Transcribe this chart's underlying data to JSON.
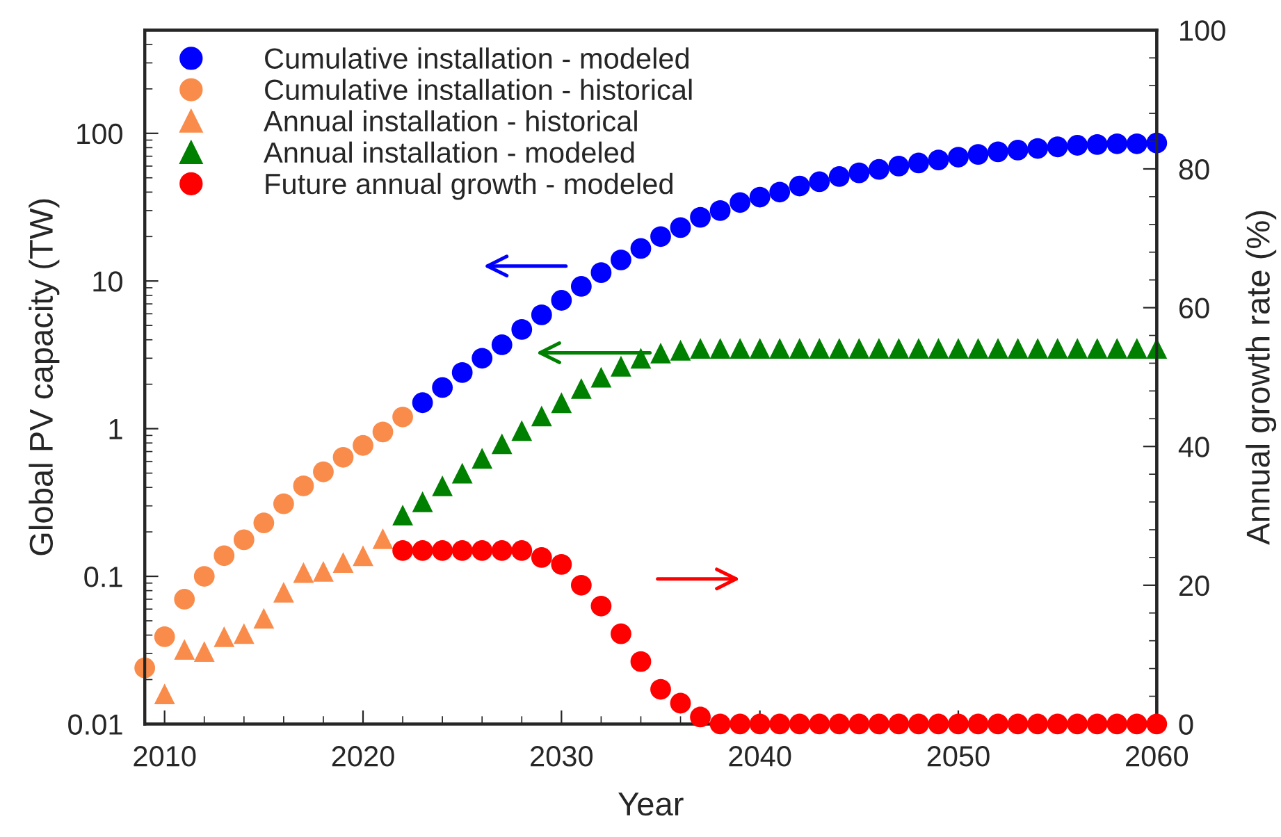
{
  "chart_data": {
    "type": "scatter",
    "xlabel": "Year",
    "ylabel": "Global PV capacity (TW)",
    "y2label": "Annual growth rate (%)",
    "xlim": [
      2009,
      2060
    ],
    "xticks": [
      2010,
      2020,
      2030,
      2040,
      2050,
      2060
    ],
    "ylim": [
      0.01,
      500
    ],
    "yticks": [
      0.01,
      0.1,
      1,
      10,
      100
    ],
    "log": "y",
    "y2lim": [
      0,
      100
    ],
    "y2ticks": [
      0,
      20,
      40,
      60,
      80,
      100
    ],
    "grid": false,
    "legend": "top left",
    "series": [
      {
        "name": "Cumulative installation - modeled",
        "color": "#0000ff",
        "marker": "circle",
        "x": [
          2023,
          2024,
          2025,
          2026,
          2027,
          2028,
          2029,
          2030,
          2031,
          2032,
          2033,
          2034,
          2035,
          2036,
          2037,
          2038,
          2039,
          2040,
          2041,
          2042,
          2043,
          2044,
          2045,
          2046,
          2047,
          2048,
          2049,
          2050,
          2051,
          2052,
          2053,
          2054,
          2055,
          2056,
          2057,
          2058,
          2059,
          2060
        ],
        "values": [
          1.5,
          1.9,
          2.4,
          3.0,
          3.7,
          4.7,
          5.9,
          7.4,
          9.2,
          11.4,
          13.9,
          16.6,
          20,
          23,
          27,
          30,
          34,
          37,
          40,
          44,
          47,
          51,
          54,
          57,
          60,
          63,
          66,
          69,
          72,
          75,
          77,
          79,
          81,
          83,
          84,
          85,
          85,
          86
        ]
      },
      {
        "name": "Cumulative installation - historical",
        "color": "#fa8c4b",
        "marker": "circle",
        "x": [
          2009,
          2010,
          2011,
          2012,
          2013,
          2014,
          2015,
          2016,
          2017,
          2018,
          2019,
          2020,
          2021,
          2022
        ],
        "values": [
          0.024,
          0.039,
          0.07,
          0.1,
          0.138,
          0.177,
          0.23,
          0.31,
          0.41,
          0.51,
          0.64,
          0.77,
          0.95,
          1.2
        ]
      },
      {
        "name": "Annual installation - historical",
        "color": "#fa8c4b",
        "marker": "triangle",
        "x": [
          2010,
          2011,
          2012,
          2013,
          2014,
          2015,
          2016,
          2017,
          2018,
          2019,
          2020,
          2021
        ],
        "values": [
          0.016,
          0.032,
          0.031,
          0.039,
          0.041,
          0.052,
          0.078,
          0.106,
          0.108,
          0.124,
          0.138,
          0.18
        ]
      },
      {
        "name": "Annual installation - modeled",
        "color": "#008000",
        "marker": "triangle",
        "x": [
          2022,
          2023,
          2024,
          2025,
          2026,
          2027,
          2028,
          2029,
          2030,
          2031,
          2032,
          2033,
          2034,
          2035,
          2036,
          2037,
          2038,
          2039,
          2040,
          2041,
          2042,
          2043,
          2044,
          2045,
          2046,
          2047,
          2048,
          2049,
          2050,
          2051,
          2052,
          2053,
          2054,
          2055,
          2056,
          2057,
          2058,
          2059,
          2060
        ],
        "values": [
          0.26,
          0.32,
          0.41,
          0.5,
          0.63,
          0.79,
          0.97,
          1.22,
          1.5,
          1.87,
          2.23,
          2.65,
          3.0,
          3.25,
          3.4,
          3.5,
          3.5,
          3.5,
          3.5,
          3.5,
          3.5,
          3.5,
          3.5,
          3.5,
          3.5,
          3.5,
          3.5,
          3.5,
          3.5,
          3.5,
          3.5,
          3.5,
          3.5,
          3.5,
          3.5,
          3.5,
          3.5,
          3.5,
          3.5
        ]
      },
      {
        "name": "Future annual growth - modeled",
        "color": "#ff0000",
        "marker": "circle",
        "axis": "y2",
        "x": [
          2022,
          2023,
          2024,
          2025,
          2026,
          2027,
          2028,
          2029,
          2030,
          2031,
          2032,
          2033,
          2034,
          2035,
          2036,
          2037,
          2038,
          2039,
          2040,
          2041,
          2042,
          2043,
          2044,
          2045,
          2046,
          2047,
          2048,
          2049,
          2050,
          2051,
          2052,
          2053,
          2054,
          2055,
          2056,
          2057,
          2058,
          2059,
          2060
        ],
        "values": [
          25,
          25,
          25,
          25,
          25,
          25,
          25,
          24,
          23,
          20,
          17,
          13,
          9,
          5,
          3,
          1,
          0,
          0,
          0,
          0,
          0,
          0,
          0,
          0,
          0,
          0,
          0,
          0,
          0,
          0,
          0,
          0,
          0,
          0,
          0,
          0,
          0,
          0,
          0
        ]
      }
    ]
  }
}
